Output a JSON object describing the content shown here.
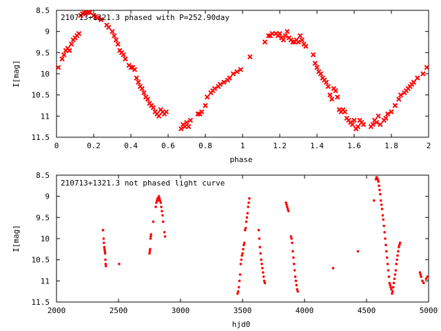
{
  "chart_data": [
    {
      "type": "scatter",
      "title": "210713+1321.3 phased with P=252.90day",
      "xlabel": "phase",
      "ylabel": "I[mag]",
      "xlim": [
        0,
        2
      ],
      "ylim": [
        8.5,
        11.5
      ],
      "y_inverted": true,
      "grid": false,
      "marker": "cross",
      "color": "#ff0000",
      "xticks": [
        0,
        0.2,
        0.4,
        0.6,
        0.8,
        1,
        1.2,
        1.4,
        1.6,
        1.8,
        2
      ],
      "xtick_labels": [
        "0",
        "0.2",
        "0.4",
        "0.6",
        "0.8",
        "1",
        "1.2",
        "1.4",
        "1.6",
        "1.8",
        "2"
      ],
      "yticks": [
        8.5,
        9,
        9.5,
        10,
        10.5,
        11,
        11.5
      ],
      "ytick_labels": [
        "8.5",
        "9",
        "9.5",
        "10",
        "10.5",
        "11",
        "11.5"
      ],
      "points": [
        [
          0.01,
          9.85
        ],
        [
          0.03,
          9.65
        ],
        [
          0.04,
          9.55
        ],
        [
          0.05,
          9.45
        ],
        [
          0.06,
          9.4
        ],
        [
          0.07,
          9.45
        ],
        [
          0.08,
          9.3
        ],
        [
          0.09,
          9.2
        ],
        [
          0.1,
          9.15
        ],
        [
          0.11,
          9.1
        ],
        [
          0.12,
          9.05
        ],
        [
          0.13,
          8.62
        ],
        [
          0.14,
          8.58
        ],
        [
          0.15,
          8.57
        ],
        [
          0.16,
          8.56
        ],
        [
          0.17,
          8.55
        ],
        [
          0.18,
          8.55
        ],
        [
          0.2,
          8.62
        ],
        [
          0.21,
          8.65
        ],
        [
          0.22,
          8.68
        ],
        [
          0.24,
          8.72
        ],
        [
          0.27,
          8.85
        ],
        [
          0.28,
          8.9
        ],
        [
          0.3,
          9.0
        ],
        [
          0.31,
          9.1
        ],
        [
          0.32,
          9.2
        ],
        [
          0.33,
          9.3
        ],
        [
          0.34,
          9.45
        ],
        [
          0.35,
          9.5
        ],
        [
          0.36,
          9.55
        ],
        [
          0.37,
          9.65
        ],
        [
          0.39,
          9.8
        ],
        [
          0.4,
          9.85
        ],
        [
          0.41,
          9.85
        ],
        [
          0.42,
          9.9
        ],
        [
          0.43,
          10.1
        ],
        [
          0.44,
          10.2
        ],
        [
          0.45,
          10.3
        ],
        [
          0.46,
          10.35
        ],
        [
          0.47,
          10.45
        ],
        [
          0.48,
          10.55
        ],
        [
          0.49,
          10.6
        ],
        [
          0.5,
          10.7
        ],
        [
          0.51,
          10.75
        ],
        [
          0.52,
          10.8
        ],
        [
          0.53,
          10.9
        ],
        [
          0.54,
          10.95
        ],
        [
          0.55,
          11.0
        ],
        [
          0.56,
          10.85
        ],
        [
          0.57,
          10.9
        ],
        [
          0.58,
          10.95
        ],
        [
          0.59,
          10.9
        ],
        [
          0.67,
          11.3
        ],
        [
          0.68,
          11.2
        ],
        [
          0.69,
          11.25
        ],
        [
          0.7,
          11.15
        ],
        [
          0.71,
          11.25
        ],
        [
          0.72,
          11.1
        ],
        [
          0.76,
          10.95
        ],
        [
          0.77,
          10.95
        ],
        [
          0.78,
          10.9
        ],
        [
          0.8,
          10.75
        ],
        [
          0.81,
          10.55
        ],
        [
          0.83,
          10.45
        ],
        [
          0.84,
          10.4
        ],
        [
          0.85,
          10.35
        ],
        [
          0.87,
          10.3
        ],
        [
          0.88,
          10.25
        ],
        [
          0.9,
          10.2
        ],
        [
          0.92,
          10.15
        ],
        [
          0.93,
          10.1
        ],
        [
          0.95,
          10.0
        ],
        [
          0.97,
          9.95
        ],
        [
          0.99,
          9.9
        ],
        [
          1.04,
          9.6
        ],
        [
          1.12,
          9.25
        ],
        [
          1.14,
          9.1
        ],
        [
          1.15,
          9.1
        ],
        [
          1.16,
          9.05
        ],
        [
          1.18,
          9.05
        ],
        [
          1.19,
          9.1
        ],
        [
          1.2,
          9.05
        ],
        [
          1.21,
          9.15
        ],
        [
          1.22,
          9.2
        ],
        [
          1.23,
          9.1
        ],
        [
          1.24,
          9.0
        ],
        [
          1.25,
          9.15
        ],
        [
          1.26,
          9.2
        ],
        [
          1.27,
          9.25
        ],
        [
          1.28,
          9.25
        ],
        [
          1.29,
          9.2
        ],
        [
          1.3,
          9.25
        ],
        [
          1.31,
          9.1
        ],
        [
          1.32,
          9.2
        ],
        [
          1.33,
          9.3
        ],
        [
          1.34,
          9.35
        ],
        [
          1.38,
          9.55
        ],
        [
          1.39,
          9.75
        ],
        [
          1.4,
          9.85
        ],
        [
          1.41,
          9.95
        ],
        [
          1.42,
          10.0
        ],
        [
          1.43,
          10.1
        ],
        [
          1.44,
          10.15
        ],
        [
          1.45,
          10.2
        ],
        [
          1.46,
          10.3
        ],
        [
          1.47,
          10.5
        ],
        [
          1.48,
          10.6
        ],
        [
          1.49,
          10.35
        ],
        [
          1.5,
          10.4
        ],
        [
          1.51,
          10.55
        ],
        [
          1.52,
          10.85
        ],
        [
          1.53,
          10.9
        ],
        [
          1.54,
          10.85
        ],
        [
          1.55,
          10.9
        ],
        [
          1.56,
          11.05
        ],
        [
          1.57,
          11.1
        ],
        [
          1.58,
          11.15
        ],
        [
          1.59,
          11.2
        ],
        [
          1.6,
          11.1
        ],
        [
          1.61,
          11.3
        ],
        [
          1.62,
          11.25
        ],
        [
          1.63,
          11.1
        ],
        [
          1.64,
          11.15
        ],
        [
          1.65,
          11.2
        ],
        [
          1.69,
          11.25
        ],
        [
          1.7,
          11.2
        ],
        [
          1.71,
          11.1
        ],
        [
          1.72,
          11.15
        ],
        [
          1.73,
          11.0
        ],
        [
          1.74,
          11.2
        ],
        [
          1.76,
          11.1
        ],
        [
          1.77,
          11.05
        ],
        [
          1.78,
          10.95
        ],
        [
          1.8,
          10.9
        ],
        [
          1.82,
          10.75
        ],
        [
          1.84,
          10.6
        ],
        [
          1.85,
          10.5
        ],
        [
          1.87,
          10.45
        ],
        [
          1.88,
          10.4
        ],
        [
          1.89,
          10.35
        ],
        [
          1.9,
          10.3
        ],
        [
          1.91,
          10.25
        ],
        [
          1.92,
          10.2
        ],
        [
          1.94,
          10.1
        ],
        [
          1.97,
          10.0
        ],
        [
          1.99,
          9.85
        ]
      ]
    },
    {
      "type": "scatter",
      "title": "210713+1321.3 not phased light curve",
      "xlabel": "hjd0",
      "ylabel": "I[mag]",
      "xlim": [
        2000,
        5000
      ],
      "ylim": [
        8.5,
        11.5
      ],
      "y_inverted": true,
      "grid": false,
      "marker": "dot",
      "color": "#ff0000",
      "xticks": [
        2000,
        2500,
        3000,
        3500,
        4000,
        4500,
        5000
      ],
      "xtick_labels": [
        "2000",
        "2500",
        "3000",
        "3500",
        "4000",
        "4500",
        "5000"
      ],
      "yticks": [
        8.5,
        9,
        9.5,
        10,
        10.5,
        11,
        11.5
      ],
      "ytick_labels": [
        "8.5",
        "9",
        "9.5",
        "10",
        "10.5",
        "11",
        "11.5"
      ],
      "points": [
        [
          2375,
          9.8
        ],
        [
          2380,
          10.0
        ],
        [
          2382,
          10.1
        ],
        [
          2385,
          10.2
        ],
        [
          2387,
          10.25
        ],
        [
          2390,
          10.3
        ],
        [
          2392,
          10.35
        ],
        [
          2394,
          10.5
        ],
        [
          2396,
          10.6
        ],
        [
          2398,
          10.65
        ],
        [
          2505,
          10.6
        ],
        [
          2750,
          10.35
        ],
        [
          2752,
          10.3
        ],
        [
          2755,
          10.25
        ],
        [
          2758,
          10.0
        ],
        [
          2760,
          9.95
        ],
        [
          2762,
          9.9
        ],
        [
          2780,
          9.6
        ],
        [
          2800,
          9.25
        ],
        [
          2805,
          9.15
        ],
        [
          2810,
          9.1
        ],
        [
          2815,
          9.05
        ],
        [
          2820,
          9.1
        ],
        [
          2825,
          9.0
        ],
        [
          2830,
          9.05
        ],
        [
          2835,
          9.1
        ],
        [
          2840,
          9.15
        ],
        [
          2845,
          9.25
        ],
        [
          2850,
          9.35
        ],
        [
          2855,
          9.45
        ],
        [
          2860,
          9.6
        ],
        [
          2870,
          9.85
        ],
        [
          2875,
          9.95
        ],
        [
          3460,
          11.3
        ],
        [
          3465,
          11.25
        ],
        [
          3470,
          11.15
        ],
        [
          3475,
          11.0
        ],
        [
          3480,
          10.85
        ],
        [
          3485,
          10.6
        ],
        [
          3490,
          10.5
        ],
        [
          3495,
          10.4
        ],
        [
          3500,
          10.35
        ],
        [
          3505,
          10.25
        ],
        [
          3510,
          10.15
        ],
        [
          3515,
          10.1
        ],
        [
          3520,
          9.8
        ],
        [
          3525,
          9.75
        ],
        [
          3530,
          9.6
        ],
        [
          3535,
          9.5
        ],
        [
          3540,
          9.4
        ],
        [
          3545,
          9.25
        ],
        [
          3550,
          9.15
        ],
        [
          3555,
          9.05
        ],
        [
          3630,
          9.8
        ],
        [
          3635,
          10.0
        ],
        [
          3640,
          10.2
        ],
        [
          3645,
          10.35
        ],
        [
          3650,
          10.5
        ],
        [
          3655,
          10.6
        ],
        [
          3660,
          10.7
        ],
        [
          3665,
          10.8
        ],
        [
          3670,
          10.9
        ],
        [
          3675,
          11.0
        ],
        [
          3680,
          11.05
        ],
        [
          3850,
          9.15
        ],
        [
          3855,
          9.2
        ],
        [
          3860,
          9.25
        ],
        [
          3865,
          9.3
        ],
        [
          3870,
          9.35
        ],
        [
          3890,
          9.95
        ],
        [
          3895,
          10.0
        ],
        [
          3900,
          10.1
        ],
        [
          3905,
          10.3
        ],
        [
          3910,
          10.45
        ],
        [
          3915,
          10.6
        ],
        [
          3920,
          10.75
        ],
        [
          3925,
          10.9
        ],
        [
          3930,
          11.0
        ],
        [
          3935,
          11.1
        ],
        [
          3940,
          11.2
        ],
        [
          3945,
          11.25
        ],
        [
          4230,
          10.7
        ],
        [
          4430,
          10.3
        ],
        [
          4560,
          9.1
        ],
        [
          4575,
          8.6
        ],
        [
          4580,
          8.55
        ],
        [
          4585,
          8.57
        ],
        [
          4590,
          8.6
        ],
        [
          4595,
          8.65
        ],
        [
          4600,
          8.75
        ],
        [
          4605,
          8.85
        ],
        [
          4610,
          8.95
        ],
        [
          4615,
          9.1
        ],
        [
          4620,
          9.2
        ],
        [
          4625,
          9.3
        ],
        [
          4630,
          9.45
        ],
        [
          4635,
          9.55
        ],
        [
          4640,
          9.7
        ],
        [
          4645,
          9.85
        ],
        [
          4650,
          10.0
        ],
        [
          4655,
          10.15
        ],
        [
          4660,
          10.3
        ],
        [
          4665,
          10.45
        ],
        [
          4670,
          10.6
        ],
        [
          4675,
          10.75
        ],
        [
          4680,
          10.9
        ],
        [
          4685,
          11.05
        ],
        [
          4690,
          11.1
        ],
        [
          4695,
          11.15
        ],
        [
          4700,
          11.2
        ],
        [
          4705,
          11.3
        ],
        [
          4710,
          11.25
        ],
        [
          4715,
          11.15
        ],
        [
          4720,
          11.05
        ],
        [
          4725,
          10.95
        ],
        [
          4730,
          10.85
        ],
        [
          4735,
          10.75
        ],
        [
          4740,
          10.6
        ],
        [
          4745,
          10.5
        ],
        [
          4750,
          10.4
        ],
        [
          4755,
          10.3
        ],
        [
          4760,
          10.2
        ],
        [
          4765,
          10.15
        ],
        [
          4770,
          10.1
        ],
        [
          4930,
          10.8
        ],
        [
          4935,
          10.85
        ],
        [
          4940,
          10.9
        ],
        [
          4950,
          11.0
        ],
        [
          4960,
          11.05
        ],
        [
          4980,
          10.95
        ],
        [
          4990,
          10.9
        ]
      ]
    }
  ]
}
